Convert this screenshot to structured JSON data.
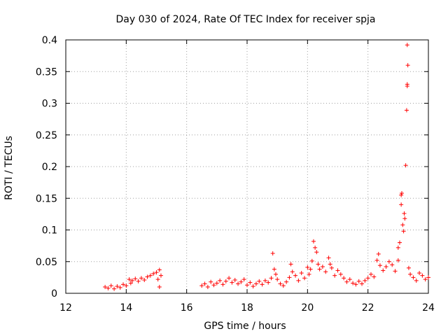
{
  "chart_data": {
    "type": "scatter",
    "title": "Day 030 of 2024, Rate Of TEC Index for receiver spja",
    "xlabel": "GPS time / hours",
    "ylabel": "ROTI / TECUs",
    "xlim": [
      12,
      24
    ],
    "ylim": [
      0,
      0.4
    ],
    "xticks": [
      12,
      14,
      16,
      18,
      20,
      22,
      24
    ],
    "xtick_labels": [
      "12",
      "14",
      "16",
      "18",
      "20",
      "22",
      "24"
    ],
    "yticks": [
      0,
      0.05,
      0.1,
      0.15,
      0.2,
      0.25,
      0.3,
      0.35,
      0.4
    ],
    "ytick_labels": [
      "0",
      "0.05",
      "0.1",
      "0.15",
      "0.2",
      "0.25",
      "0.3",
      "0.35",
      "0.4"
    ],
    "grid": true,
    "marker": "+",
    "series": [
      {
        "name": "ROTI",
        "color": "#ff0000",
        "points": [
          [
            13.3,
            0.01
          ],
          [
            13.4,
            0.008
          ],
          [
            13.5,
            0.012
          ],
          [
            13.6,
            0.007
          ],
          [
            13.7,
            0.011
          ],
          [
            13.8,
            0.009
          ],
          [
            13.9,
            0.014
          ],
          [
            14.0,
            0.012
          ],
          [
            14.1,
            0.022
          ],
          [
            14.15,
            0.016
          ],
          [
            14.2,
            0.02
          ],
          [
            14.3,
            0.023
          ],
          [
            14.4,
            0.019
          ],
          [
            14.5,
            0.024
          ],
          [
            14.6,
            0.021
          ],
          [
            14.7,
            0.026
          ],
          [
            14.8,
            0.028
          ],
          [
            14.9,
            0.031
          ],
          [
            15.0,
            0.033
          ],
          [
            15.05,
            0.022
          ],
          [
            15.1,
            0.037
          ],
          [
            15.1,
            0.01
          ],
          [
            15.15,
            0.028
          ],
          [
            16.5,
            0.012
          ],
          [
            16.6,
            0.015
          ],
          [
            16.7,
            0.01
          ],
          [
            16.8,
            0.018
          ],
          [
            16.9,
            0.013
          ],
          [
            17.0,
            0.016
          ],
          [
            17.1,
            0.02
          ],
          [
            17.2,
            0.014
          ],
          [
            17.3,
            0.019
          ],
          [
            17.4,
            0.024
          ],
          [
            17.5,
            0.017
          ],
          [
            17.6,
            0.021
          ],
          [
            17.7,
            0.015
          ],
          [
            17.8,
            0.018
          ],
          [
            17.9,
            0.022
          ],
          [
            18.0,
            0.013
          ],
          [
            18.1,
            0.017
          ],
          [
            18.2,
            0.011
          ],
          [
            18.3,
            0.015
          ],
          [
            18.4,
            0.019
          ],
          [
            18.5,
            0.014
          ],
          [
            18.6,
            0.02
          ],
          [
            18.7,
            0.017
          ],
          [
            18.8,
            0.024
          ],
          [
            18.85,
            0.063
          ],
          [
            18.9,
            0.038
          ],
          [
            18.95,
            0.03
          ],
          [
            19.0,
            0.022
          ],
          [
            19.1,
            0.015
          ],
          [
            19.2,
            0.012
          ],
          [
            19.3,
            0.018
          ],
          [
            19.4,
            0.025
          ],
          [
            19.45,
            0.046
          ],
          [
            19.5,
            0.034
          ],
          [
            19.6,
            0.028
          ],
          [
            19.7,
            0.02
          ],
          [
            19.8,
            0.032
          ],
          [
            19.9,
            0.024
          ],
          [
            20.0,
            0.041
          ],
          [
            20.05,
            0.03
          ],
          [
            20.1,
            0.038
          ],
          [
            20.15,
            0.051
          ],
          [
            20.2,
            0.082
          ],
          [
            20.25,
            0.072
          ],
          [
            20.3,
            0.065
          ],
          [
            20.35,
            0.046
          ],
          [
            20.4,
            0.038
          ],
          [
            20.5,
            0.042
          ],
          [
            20.6,
            0.034
          ],
          [
            20.7,
            0.056
          ],
          [
            20.75,
            0.046
          ],
          [
            20.8,
            0.04
          ],
          [
            20.9,
            0.028
          ],
          [
            21.0,
            0.036
          ],
          [
            21.1,
            0.03
          ],
          [
            21.2,
            0.024
          ],
          [
            21.3,
            0.018
          ],
          [
            21.4,
            0.022
          ],
          [
            21.5,
            0.016
          ],
          [
            21.6,
            0.014
          ],
          [
            21.7,
            0.019
          ],
          [
            21.8,
            0.015
          ],
          [
            21.9,
            0.02
          ],
          [
            22.0,
            0.024
          ],
          [
            22.1,
            0.03
          ],
          [
            22.2,
            0.026
          ],
          [
            22.3,
            0.052
          ],
          [
            22.35,
            0.062
          ],
          [
            22.4,
            0.044
          ],
          [
            22.5,
            0.036
          ],
          [
            22.6,
            0.042
          ],
          [
            22.7,
            0.05
          ],
          [
            22.8,
            0.045
          ],
          [
            22.9,
            0.035
          ],
          [
            23.0,
            0.052
          ],
          [
            23.0,
            0.072
          ],
          [
            23.05,
            0.08
          ],
          [
            23.1,
            0.14
          ],
          [
            23.1,
            0.155
          ],
          [
            23.12,
            0.158
          ],
          [
            23.15,
            0.108
          ],
          [
            23.18,
            0.098
          ],
          [
            23.2,
            0.126
          ],
          [
            23.22,
            0.118
          ],
          [
            23.25,
            0.202
          ],
          [
            23.28,
            0.289
          ],
          [
            23.3,
            0.327
          ],
          [
            23.3,
            0.33
          ],
          [
            23.32,
            0.36
          ],
          [
            23.3,
            0.392
          ],
          [
            23.35,
            0.04
          ],
          [
            23.4,
            0.03
          ],
          [
            23.5,
            0.025
          ],
          [
            23.6,
            0.02
          ],
          [
            23.7,
            0.032
          ],
          [
            23.8,
            0.028
          ],
          [
            23.9,
            0.022
          ],
          [
            24.0,
            0.025
          ]
        ]
      }
    ]
  }
}
